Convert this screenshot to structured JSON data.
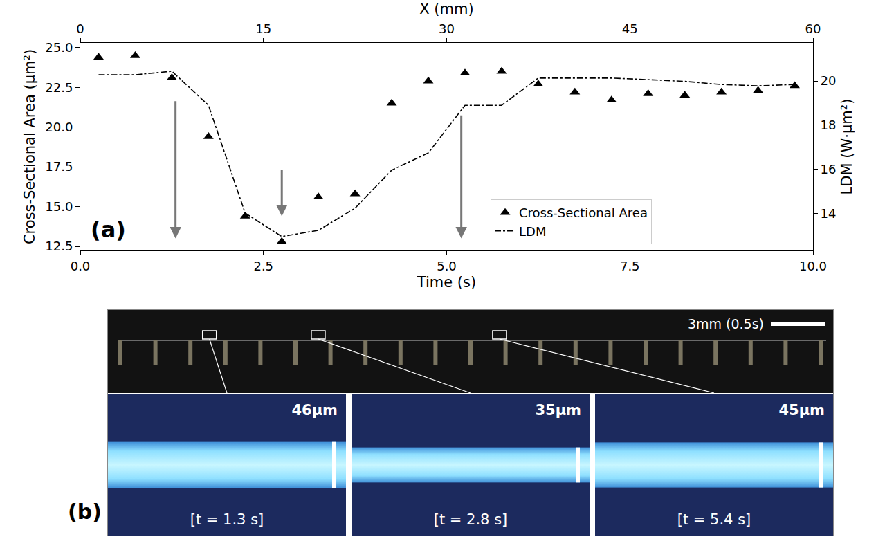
{
  "chart_data": {
    "type": "scatter",
    "panel_label": "(a)",
    "x_label": "Time (s)",
    "x2_label": "X (mm)",
    "y_label": "Cross-Sectional Area (μm²)",
    "y2_label": "LDM (W·μm²)",
    "xlim": [
      0,
      10
    ],
    "xticks": [
      {
        "value": 0,
        "label": "0.0"
      },
      {
        "value": 2.5,
        "label": "2.5"
      },
      {
        "value": 5,
        "label": "5.0"
      },
      {
        "value": 7.5,
        "label": "7.5"
      },
      {
        "value": 10,
        "label": "10.0"
      }
    ],
    "x2lim": [
      0,
      60
    ],
    "x2ticks": [
      0,
      15,
      30,
      45,
      60
    ],
    "ylim": [
      12.24,
      25.3
    ],
    "yticks": [
      12.5,
      {
        "value": 15,
        "label": "15.0"
      },
      17.5,
      {
        "value": 20,
        "label": "20.0"
      },
      22.5,
      {
        "value": 25,
        "label": "25.0"
      }
    ],
    "y2lim": [
      12.34,
      21.72
    ],
    "y2ticks": [
      14,
      16,
      18,
      20
    ],
    "grid": false,
    "legend": "lower right",
    "x": [
      0.25,
      0.75,
      1.25,
      1.75,
      2.25,
      2.75,
      3.25,
      3.75,
      4.25,
      4.75,
      5.25,
      5.75,
      6.25,
      6.75,
      7.25,
      7.75,
      8.25,
      8.75,
      9.25,
      9.75
    ],
    "series": [
      {
        "name": "Cross-Sectional Area",
        "type": "scatter",
        "marker": "triangle-up",
        "color": "#000000",
        "values": [
          24.4,
          24.5,
          23.1,
          19.4,
          14.4,
          12.8,
          15.6,
          15.8,
          21.5,
          22.9,
          23.4,
          23.5,
          22.7,
          22.2,
          21.7,
          22.1,
          22.0,
          22.2,
          22.3,
          22.6
        ]
      },
      {
        "name": "LDM",
        "type": "line",
        "line_style": "dashdot",
        "color": "#000000",
        "axis": "y2",
        "values": [
          20.28,
          20.28,
          20.44,
          18.9,
          14.03,
          12.97,
          13.25,
          14.25,
          15.97,
          16.75,
          18.9,
          18.9,
          20.13,
          20.13,
          20.13,
          20.06,
          19.98,
          19.84,
          19.78,
          19.84
        ]
      }
    ],
    "arrows": [
      {
        "x": 1.3,
        "from": 21.7,
        "to": 13.0
      },
      {
        "x": 2.75,
        "from": 17.4,
        "to": 14.4
      },
      {
        "x": 5.2,
        "from": 20.8,
        "to": 13.0
      }
    ]
  },
  "panel_b": {
    "label": "(b)",
    "scale_bar": "3mm (0.5s)",
    "insets": [
      {
        "width": "46μm",
        "time": "[t = 1.3 s]"
      },
      {
        "width": "35μm",
        "time": "[t = 2.8 s]"
      },
      {
        "width": "45μm",
        "time": "[t = 5.4 s]"
      }
    ]
  }
}
